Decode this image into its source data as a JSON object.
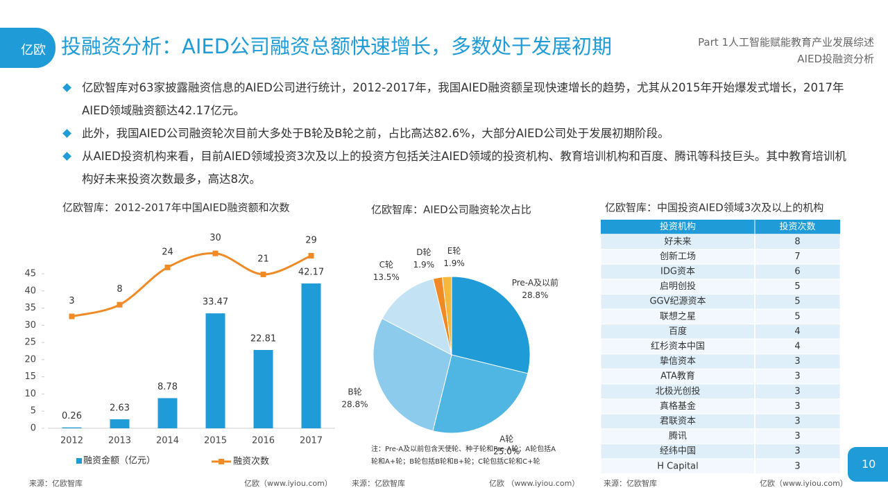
{
  "header": {
    "logo": "亿欧",
    "title": "投融资分析：AIED公司融资总额快速增长，多数处于发展初期",
    "part": "Part 1人工智能赋能教育产业发展综述",
    "section": "AIED投融资分析"
  },
  "bullets": [
    "亿欧智库对63家披露融资信息的AIED公司进行统计，2012-2017年，我国AIED融资额呈现快速增长的趋势，尤其从2015年开始爆发式增长，2017年AIED领域融资额达42.17亿元。",
    "此外，我国AIED公司融资轮次目前大多处于B轮及B轮之前，占比高达82.6%，大部分AIED公司处于发展初期阶段。",
    "从AIED投资机构来看，目前AIED领域投资3次及以上的投资方包括关注AIED领域的投资机构、教育培训机构和百度、腾讯等科技巨头。其中教育培训机构好未来投资次数最多，高达8次。"
  ],
  "chart_data": [
    {
      "type": "bar-line",
      "title": "亿欧智库：2012-2017年中国AIED融资额和次数",
      "categories": [
        "2012",
        "2013",
        "2014",
        "2015",
        "2016",
        "2017"
      ],
      "series": [
        {
          "name": "融资金额（亿元）",
          "color": "#1f9bd7",
          "values": [
            0.26,
            2.63,
            8.78,
            33.47,
            22.81,
            42.17
          ]
        },
        {
          "name": "融资次数",
          "color": "#f08a24",
          "values": [
            3,
            8,
            24,
            30,
            21,
            29
          ],
          "axis": "y2"
        }
      ],
      "ylim": [
        0,
        45
      ],
      "yticks": [
        0,
        5,
        10,
        15,
        20,
        25,
        30,
        35,
        40,
        45
      ],
      "y2lim": [
        -45,
        40
      ]
    },
    {
      "type": "pie",
      "title": "亿欧智库：AIED公司融资轮次占比",
      "categories": [
        "Pre-A及以前",
        "A轮",
        "B轮",
        "C轮",
        "D轮",
        "E轮"
      ],
      "values": [
        28.8,
        25.0,
        28.8,
        13.5,
        1.9,
        1.9
      ],
      "value_labels": [
        "28.8%",
        "25.0%",
        "28.8%",
        "13.5%",
        "1.9%",
        "1.9%"
      ],
      "colors": [
        "#1f9bd7",
        "#4fb5e2",
        "#8dcbed",
        "#c3e3f5",
        "#f08a24",
        "#f5b83a"
      ],
      "note": "注：Pre-A及以前包含天使轮、种子轮和Pre-A轮；A轮包括A轮和A+轮；B轮包括B轮和B+轮；C轮包括C轮和C+轮"
    }
  ],
  "table": {
    "title": "亿欧智库：中国投资AIED领域3次及以上的机构",
    "columns": [
      "投资机构",
      "投资次数"
    ],
    "rows": [
      [
        "好未来",
        "8"
      ],
      [
        "创新工场",
        "7"
      ],
      [
        "IDG资本",
        "6"
      ],
      [
        "启明创投",
        "5"
      ],
      [
        "GGV纪源资本",
        "5"
      ],
      [
        "联想之星",
        "5"
      ],
      [
        "百度",
        "4"
      ],
      [
        "红杉资本中国",
        "4"
      ],
      [
        "挚信资本",
        "3"
      ],
      [
        "ATA教育",
        "3"
      ],
      [
        "北极光创投",
        "3"
      ],
      [
        "真格基金",
        "3"
      ],
      [
        "君联资本",
        "3"
      ],
      [
        "腾讯",
        "3"
      ],
      [
        "经纬中国",
        "3"
      ],
      [
        "H Capital",
        "3"
      ]
    ]
  },
  "footer": {
    "sources": [
      "来源：亿欧智库",
      "来源：亿欧智库",
      "来源：亿欧智库"
    ],
    "sites": [
      "亿欧（www.iyiou.com）",
      "亿欧 （www.iyiou.com）",
      "亿欧（www.iyiou.com）"
    ],
    "page": "10"
  }
}
